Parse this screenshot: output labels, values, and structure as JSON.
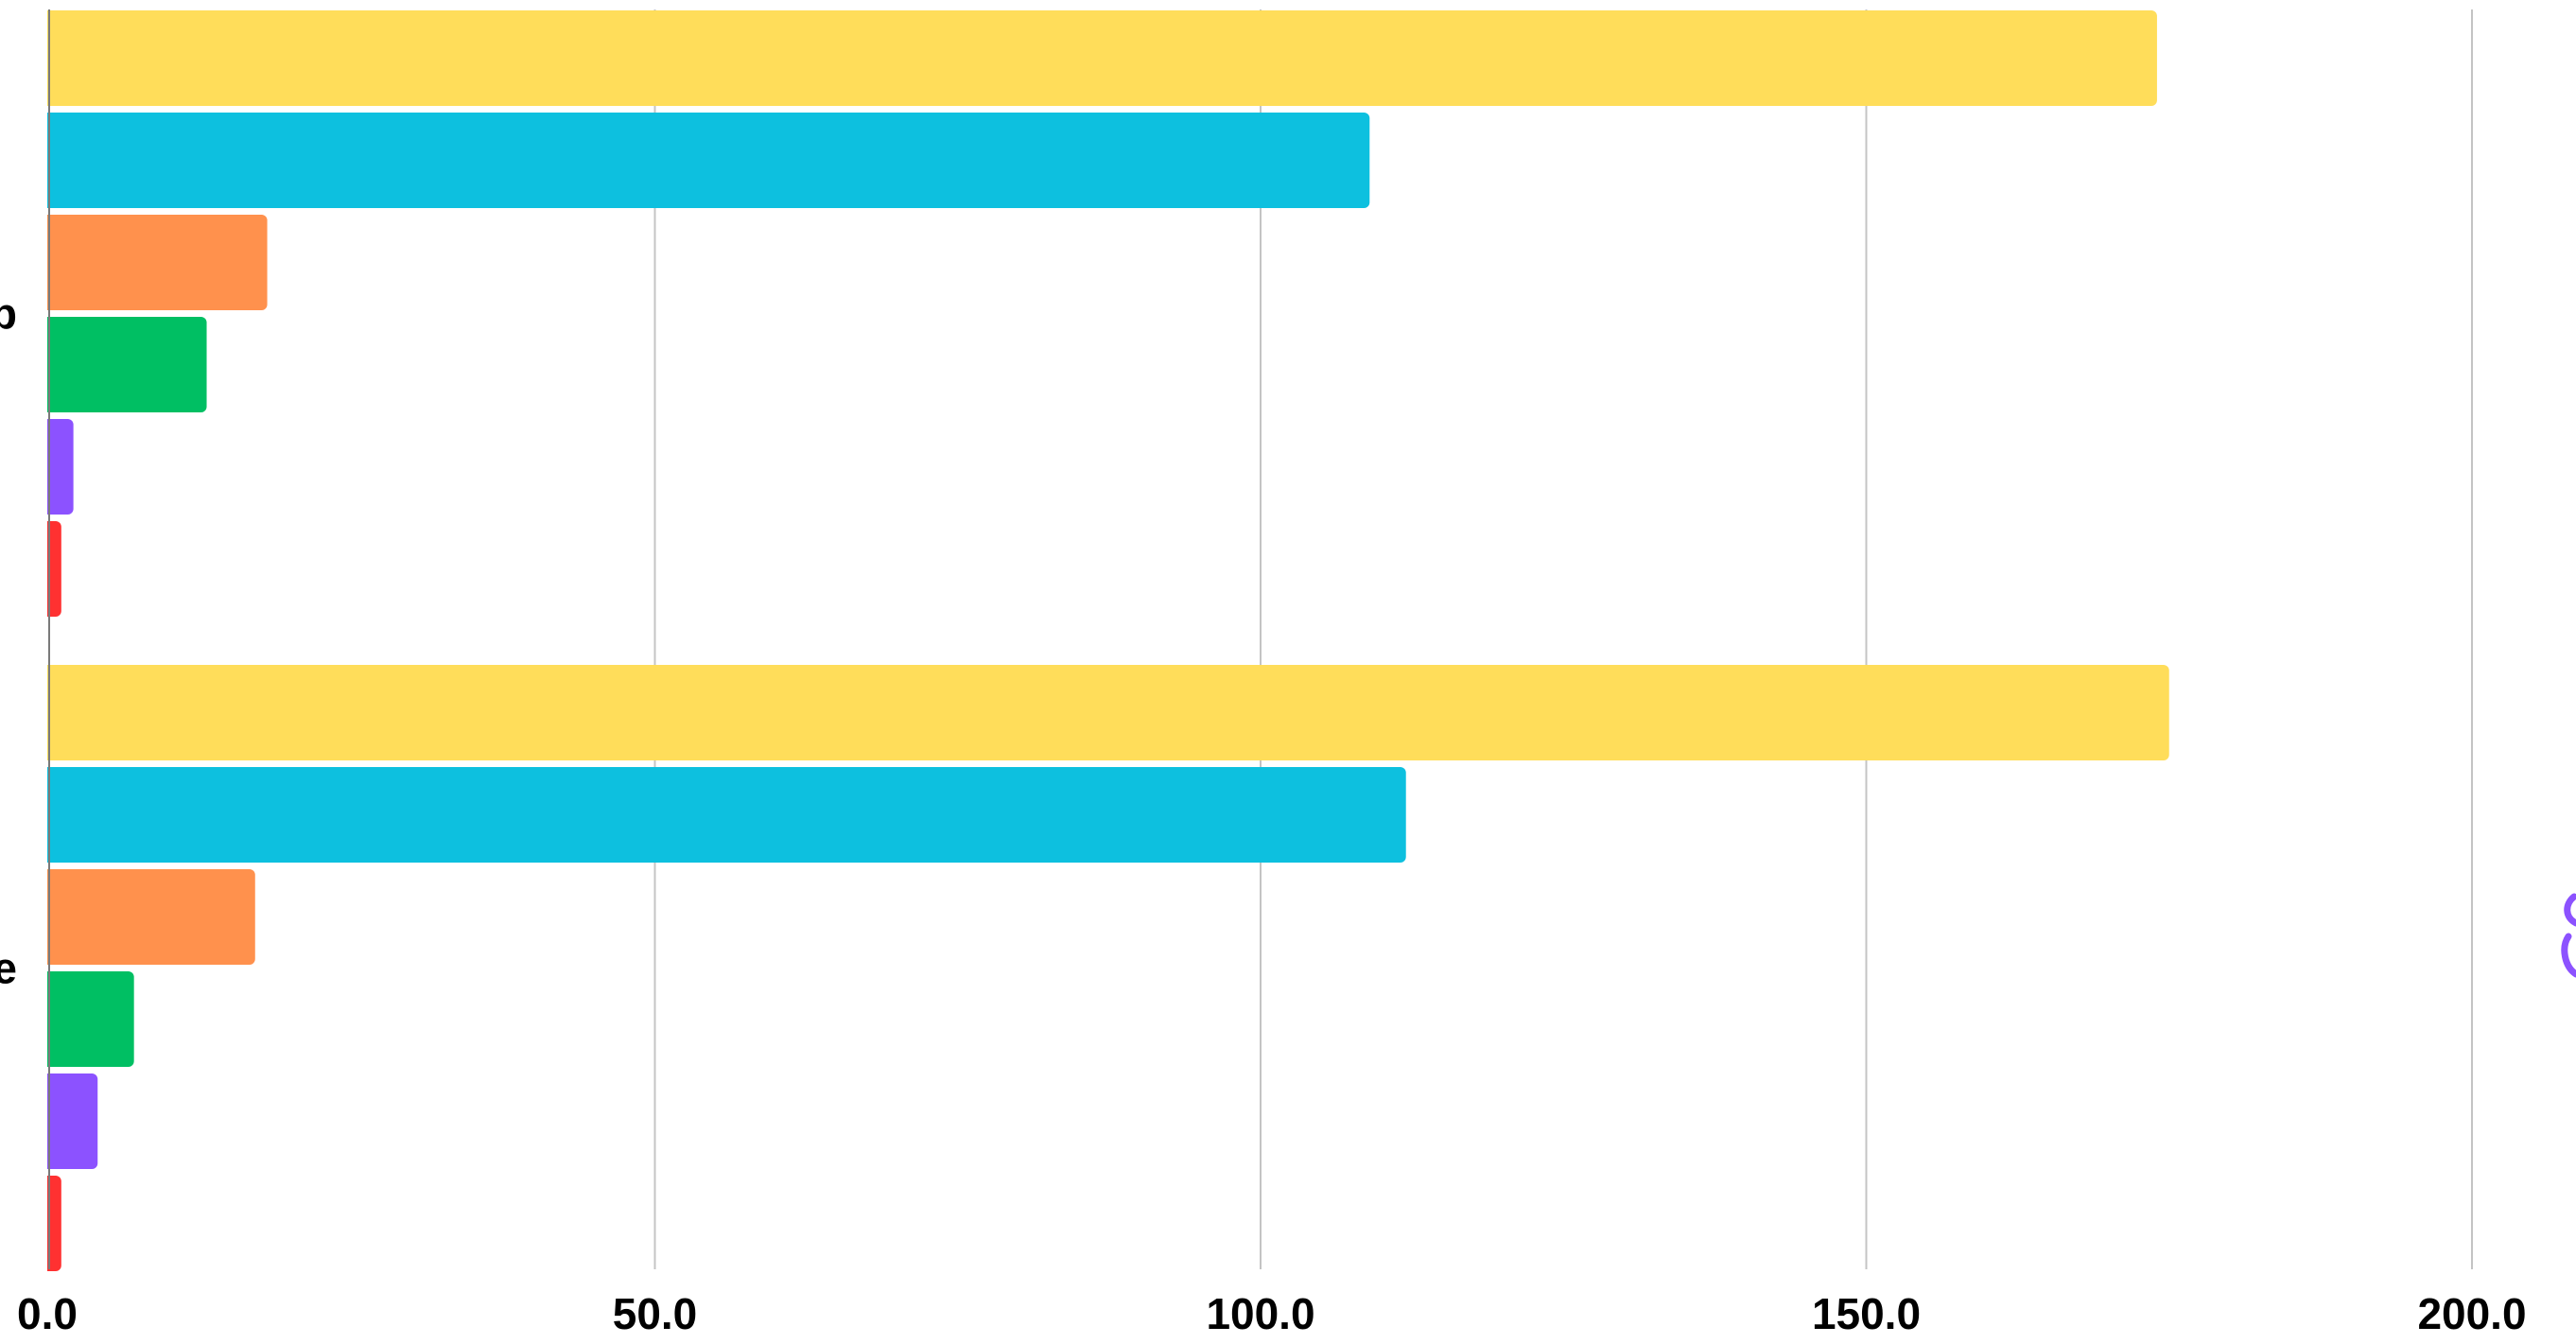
{
  "chart_data": {
    "type": "bar",
    "orientation": "horizontal",
    "categories": [
      "…p",
      "…e"
    ],
    "series": [
      {
        "color": "#FFDD5A",
        "values": [
          174.0,
          175.0
        ]
      },
      {
        "color": "#0DC0DF",
        "values": [
          109.0,
          112.0
        ]
      },
      {
        "color": "#FF914D",
        "values": [
          18.0,
          17.0
        ]
      },
      {
        "color": "#00BF63",
        "values": [
          13.0,
          7.0
        ]
      },
      {
        "color": "#8C52FF",
        "values": [
          2.0,
          4.0
        ]
      },
      {
        "color": "#FF3131",
        "values": [
          1.0,
          1.0
        ]
      }
    ],
    "xlim": [
      0,
      200
    ],
    "xticks": [
      0,
      50,
      100,
      150,
      200
    ],
    "xtick_labels": [
      "0.0",
      "50.0",
      "100.0",
      "150.0",
      "200.0"
    ],
    "grid": "vertical",
    "legend": "none"
  }
}
